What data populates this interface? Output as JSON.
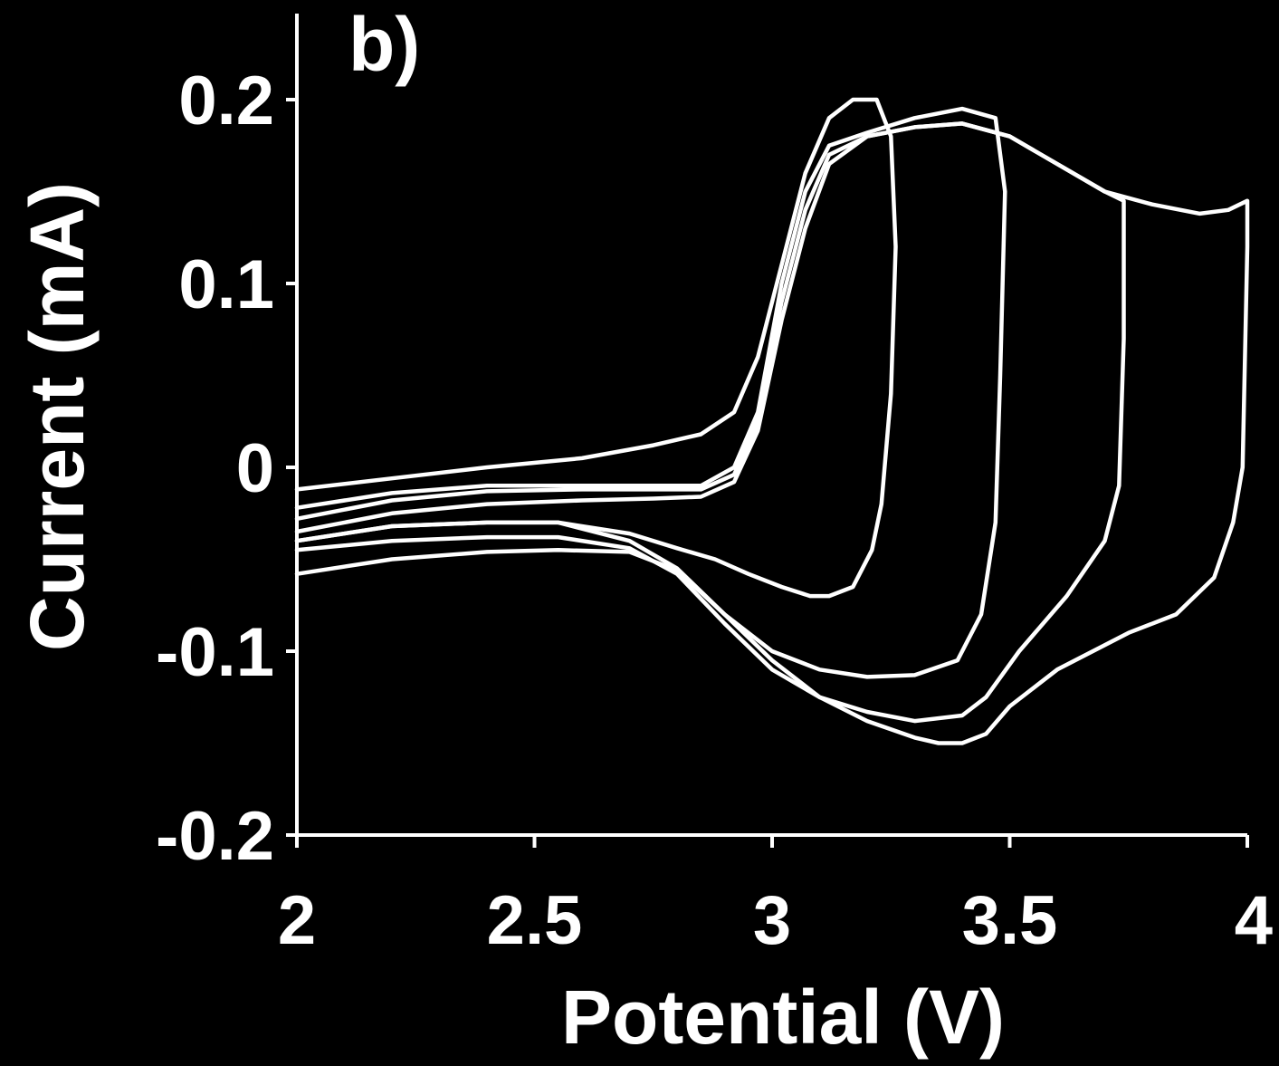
{
  "chart_data": {
    "type": "line",
    "panel_label": "b)",
    "xlabel": "Potential (V)",
    "ylabel": "Current (mA)",
    "xlim": [
      2,
      4
    ],
    "ylim": [
      -0.2,
      0.2
    ],
    "x_ticks": [
      2,
      2.5,
      3,
      3.5,
      4
    ],
    "x_tick_labels": [
      "2",
      "2.5",
      "3",
      "3.5",
      "4"
    ],
    "y_ticks": [
      -0.2,
      -0.1,
      0,
      0.1,
      0.2
    ],
    "y_tick_labels": [
      "-0.2",
      "-0.1",
      "0",
      "0.1",
      "0.2"
    ],
    "grid": false,
    "legend": "none",
    "colors": {
      "background": "#000000",
      "foreground": "#ffffff"
    },
    "series": [
      {
        "x": [
          2.0,
          2.2,
          2.4,
          2.6,
          2.75,
          2.85,
          2.92,
          2.97,
          3.02,
          3.07,
          3.12,
          3.17,
          3.22,
          3.25,
          3.26,
          3.25,
          3.23,
          3.21,
          3.17,
          3.12,
          3.08,
          3.02,
          2.95,
          2.88,
          2.8,
          2.7,
          2.55,
          2.4,
          2.2,
          2.0
        ],
        "y": [
          -0.012,
          -0.006,
          0.0,
          0.005,
          0.012,
          0.018,
          0.03,
          0.06,
          0.11,
          0.16,
          0.19,
          0.2,
          0.2,
          0.18,
          0.12,
          0.04,
          -0.02,
          -0.045,
          -0.065,
          -0.07,
          -0.07,
          -0.065,
          -0.058,
          -0.05,
          -0.044,
          -0.036,
          -0.03,
          -0.03,
          -0.032,
          -0.04
        ]
      },
      {
        "x": [
          2.0,
          2.2,
          2.4,
          2.6,
          2.75,
          2.85,
          2.92,
          2.97,
          3.02,
          3.07,
          3.12,
          3.2,
          3.3,
          3.4,
          3.47,
          3.49,
          3.48,
          3.47,
          3.44,
          3.39,
          3.3,
          3.2,
          3.1,
          3.0,
          2.9,
          2.8,
          2.7,
          2.55,
          2.4,
          2.2,
          2.0
        ],
        "y": [
          -0.022,
          -0.014,
          -0.01,
          -0.01,
          -0.01,
          -0.01,
          0.0,
          0.03,
          0.1,
          0.15,
          0.175,
          0.182,
          0.19,
          0.195,
          0.19,
          0.15,
          0.05,
          -0.03,
          -0.08,
          -0.105,
          -0.113,
          -0.114,
          -0.11,
          -0.1,
          -0.08,
          -0.055,
          -0.04,
          -0.03,
          -0.03,
          -0.032,
          -0.04
        ]
      },
      {
        "x": [
          2.0,
          2.2,
          2.4,
          2.6,
          2.75,
          2.85,
          2.92,
          2.97,
          3.02,
          3.07,
          3.12,
          3.2,
          3.3,
          3.4,
          3.5,
          3.6,
          3.7,
          3.74,
          3.74,
          3.73,
          3.7,
          3.62,
          3.52,
          3.45,
          3.4,
          3.3,
          3.2,
          3.1,
          3.0,
          2.9,
          2.8,
          2.7,
          2.55,
          2.4,
          2.2,
          2.0
        ],
        "y": [
          -0.028,
          -0.018,
          -0.013,
          -0.012,
          -0.012,
          -0.012,
          -0.004,
          0.025,
          0.09,
          0.14,
          0.17,
          0.18,
          0.185,
          0.187,
          0.18,
          0.165,
          0.15,
          0.145,
          0.07,
          -0.01,
          -0.04,
          -0.07,
          -0.1,
          -0.125,
          -0.135,
          -0.138,
          -0.133,
          -0.125,
          -0.11,
          -0.085,
          -0.058,
          -0.044,
          -0.038,
          -0.038,
          -0.04,
          -0.045
        ]
      },
      {
        "x": [
          2.0,
          2.2,
          2.4,
          2.6,
          2.75,
          2.85,
          2.92,
          2.97,
          3.02,
          3.07,
          3.12,
          3.2,
          3.3,
          3.4,
          3.5,
          3.6,
          3.7,
          3.8,
          3.9,
          3.96,
          4.0,
          4.0,
          3.99,
          3.97,
          3.93,
          3.85,
          3.75,
          3.6,
          3.5,
          3.45,
          3.4,
          3.35,
          3.3,
          3.2,
          3.1,
          3.0,
          2.9,
          2.8,
          2.7,
          2.55,
          2.4,
          2.2,
          2.0
        ],
        "y": [
          -0.035,
          -0.025,
          -0.02,
          -0.018,
          -0.017,
          -0.016,
          -0.008,
          0.02,
          0.08,
          0.13,
          0.165,
          0.18,
          0.185,
          0.187,
          0.18,
          0.165,
          0.15,
          0.143,
          0.138,
          0.14,
          0.145,
          0.12,
          0.0,
          -0.03,
          -0.06,
          -0.08,
          -0.09,
          -0.11,
          -0.13,
          -0.145,
          -0.15,
          -0.15,
          -0.147,
          -0.138,
          -0.125,
          -0.105,
          -0.08,
          -0.056,
          -0.046,
          -0.045,
          -0.046,
          -0.05,
          -0.058
        ]
      }
    ]
  }
}
